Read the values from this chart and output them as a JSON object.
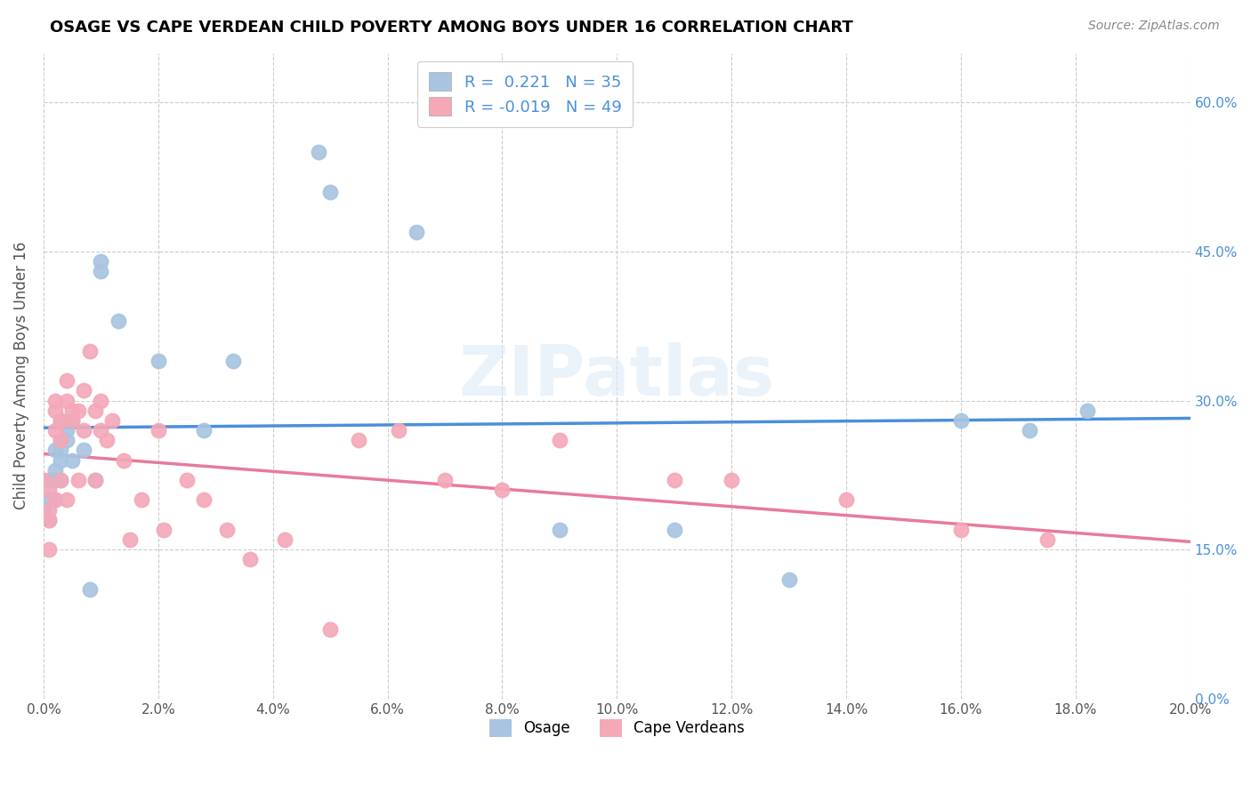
{
  "title": "OSAGE VS CAPE VERDEAN CHILD POVERTY AMONG BOYS UNDER 16 CORRELATION CHART",
  "source": "Source: ZipAtlas.com",
  "ylabel": "Child Poverty Among Boys Under 16",
  "xlim": [
    0.0,
    0.2
  ],
  "ylim": [
    0.0,
    0.65
  ],
  "osage_R": 0.221,
  "osage_N": 35,
  "cv_R": -0.019,
  "cv_N": 49,
  "osage_color": "#a8c4e0",
  "cv_color": "#f4a8b8",
  "osage_line_color": "#4a90d9",
  "cv_line_color": "#e87a9a",
  "watermark": "ZIPatlas",
  "tick_color": "#4a90d9",
  "osage_x": [
    0.0,
    0.001,
    0.001,
    0.001,
    0.002,
    0.002,
    0.002,
    0.002,
    0.003,
    0.003,
    0.003,
    0.003,
    0.003,
    0.004,
    0.004,
    0.005,
    0.005,
    0.007,
    0.008,
    0.009,
    0.01,
    0.01,
    0.013,
    0.02,
    0.028,
    0.033,
    0.048,
    0.05,
    0.065,
    0.09,
    0.11,
    0.13,
    0.16,
    0.172,
    0.182
  ],
  "osage_y": [
    0.19,
    0.22,
    0.2,
    0.18,
    0.25,
    0.23,
    0.22,
    0.2,
    0.28,
    0.26,
    0.24,
    0.25,
    0.22,
    0.27,
    0.26,
    0.28,
    0.24,
    0.25,
    0.11,
    0.22,
    0.44,
    0.43,
    0.38,
    0.34,
    0.27,
    0.34,
    0.55,
    0.51,
    0.47,
    0.17,
    0.17,
    0.12,
    0.28,
    0.27,
    0.29
  ],
  "cv_x": [
    0.0,
    0.001,
    0.001,
    0.001,
    0.001,
    0.002,
    0.002,
    0.002,
    0.002,
    0.003,
    0.003,
    0.003,
    0.004,
    0.004,
    0.004,
    0.005,
    0.005,
    0.006,
    0.006,
    0.007,
    0.007,
    0.008,
    0.009,
    0.009,
    0.01,
    0.01,
    0.011,
    0.012,
    0.014,
    0.015,
    0.017,
    0.02,
    0.021,
    0.025,
    0.028,
    0.032,
    0.036,
    0.042,
    0.05,
    0.055,
    0.062,
    0.07,
    0.08,
    0.09,
    0.11,
    0.12,
    0.14,
    0.16,
    0.175
  ],
  "cv_y": [
    0.22,
    0.21,
    0.19,
    0.18,
    0.15,
    0.3,
    0.29,
    0.27,
    0.2,
    0.28,
    0.26,
    0.22,
    0.32,
    0.3,
    0.2,
    0.29,
    0.28,
    0.29,
    0.22,
    0.31,
    0.27,
    0.35,
    0.29,
    0.22,
    0.3,
    0.27,
    0.26,
    0.28,
    0.24,
    0.16,
    0.2,
    0.27,
    0.17,
    0.22,
    0.2,
    0.17,
    0.14,
    0.16,
    0.07,
    0.26,
    0.27,
    0.22,
    0.21,
    0.26,
    0.22,
    0.22,
    0.2,
    0.17,
    0.16
  ]
}
